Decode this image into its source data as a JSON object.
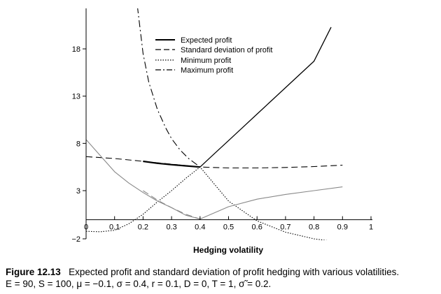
{
  "caption": {
    "label": "Figure 12.13",
    "text": "Expected profit and standard deviation of profit hedging with various volatilities.",
    "params": "E = 90, S = 100, μ = −0.1, σ = 0.4, r = 0.1, D = 0, T = 1, σ̃ = 0.2."
  },
  "chart_data": {
    "type": "line",
    "xlabel": "Hedging volatility",
    "ylabel": "",
    "xlim": [
      0,
      1
    ],
    "ylim": [
      -2,
      22
    ],
    "xticks": [
      {
        "value": 0,
        "label": "0"
      },
      {
        "value": 0.1,
        "label": "0.1"
      },
      {
        "value": 0.2,
        "label": "0.2"
      },
      {
        "value": 0.3,
        "label": "0.3"
      },
      {
        "value": 0.4,
        "label": "0.4"
      },
      {
        "value": 0.5,
        "label": "0.5"
      },
      {
        "value": 0.6,
        "label": "0.6"
      },
      {
        "value": 0.7,
        "label": "0.7"
      },
      {
        "value": 0.8,
        "label": "0.8"
      },
      {
        "value": 0.9,
        "label": "0.9"
      },
      {
        "value": 1,
        "label": "1"
      }
    ],
    "yticks": [
      {
        "value": -2,
        "label": "−2"
      },
      {
        "value": 3,
        "label": "3"
      },
      {
        "value": 8,
        "label": "8"
      },
      {
        "value": 13,
        "label": "13"
      },
      {
        "value": 18,
        "label": "18"
      }
    ],
    "grid": false,
    "legend": "top-center",
    "series": [
      {
        "name": "Expected profit",
        "style": "solid",
        "color": "#000000",
        "x": [
          0.2,
          0.25,
          0.3,
          0.35,
          0.4,
          0.45,
          0.5,
          0.55,
          0.6,
          0.65,
          0.7,
          0.75,
          0.8,
          0.86
        ],
        "y": [
          6.1,
          5.9,
          5.75,
          5.62,
          5.5,
          6.9,
          8.3,
          9.7,
          11.1,
          12.5,
          13.9,
          15.3,
          16.7,
          20.3
        ]
      },
      {
        "name": "Standard deviation of profit",
        "style": "dashed",
        "color": "#000000",
        "x": [
          0,
          0.1,
          0.2,
          0.3,
          0.4,
          0.5,
          0.6,
          0.7,
          0.8,
          0.9
        ],
        "y": [
          6.6,
          6.4,
          6.1,
          5.8,
          5.5,
          5.4,
          5.4,
          5.45,
          5.55,
          5.7
        ]
      },
      {
        "name": "Minimum profit",
        "style": "dotted",
        "color": "#000000",
        "x": [
          0,
          0.05,
          0.1,
          0.15,
          0.2,
          0.25,
          0.3,
          0.35,
          0.4,
          0.5,
          0.6,
          0.7,
          0.8,
          0.9
        ],
        "y": [
          -1.3,
          -1.35,
          -1.2,
          -0.5,
          0.5,
          1.8,
          3.0,
          4.3,
          5.5,
          1.9,
          -0.2,
          -1.4,
          -2.1,
          -2.5
        ]
      },
      {
        "name": "Maximum profit",
        "style": "dashdot",
        "color": "#000000",
        "x": [
          0.18,
          0.2,
          0.22,
          0.25,
          0.28,
          0.3,
          0.33,
          0.36,
          0.4
        ],
        "y": [
          22.5,
          17.5,
          14.5,
          11.6,
          9.6,
          8.5,
          7.3,
          6.4,
          5.5
        ]
      },
      {
        "name": "",
        "style": "solid",
        "color": "#888888",
        "x": [
          0,
          0.05,
          0.1,
          0.15,
          0.2,
          0.25,
          0.3,
          0.35,
          0.4,
          0.5,
          0.6,
          0.7,
          0.8,
          0.9
        ],
        "y": [
          8.4,
          6.7,
          5.0,
          3.8,
          2.8,
          1.9,
          1.2,
          0.4,
          0.0,
          1.3,
          2.1,
          2.6,
          3.0,
          3.4
        ]
      },
      {
        "name": "",
        "style": "dashed",
        "color": "#888888",
        "x": [
          0.2,
          0.25,
          0.3,
          0.35,
          0.4
        ],
        "y": [
          3.0,
          2.0,
          1.2,
          0.5,
          0.0
        ]
      }
    ],
    "legend_entries": [
      {
        "label": "Expected profit",
        "style": "solid",
        "width": 2
      },
      {
        "label": "Standard deviation of profit",
        "style": "dashed",
        "width": 1.2
      },
      {
        "label": "Minimum profit",
        "style": "dotted",
        "width": 1.2
      },
      {
        "label": "Maximum profit",
        "style": "dashdot",
        "width": 1.2
      }
    ]
  }
}
